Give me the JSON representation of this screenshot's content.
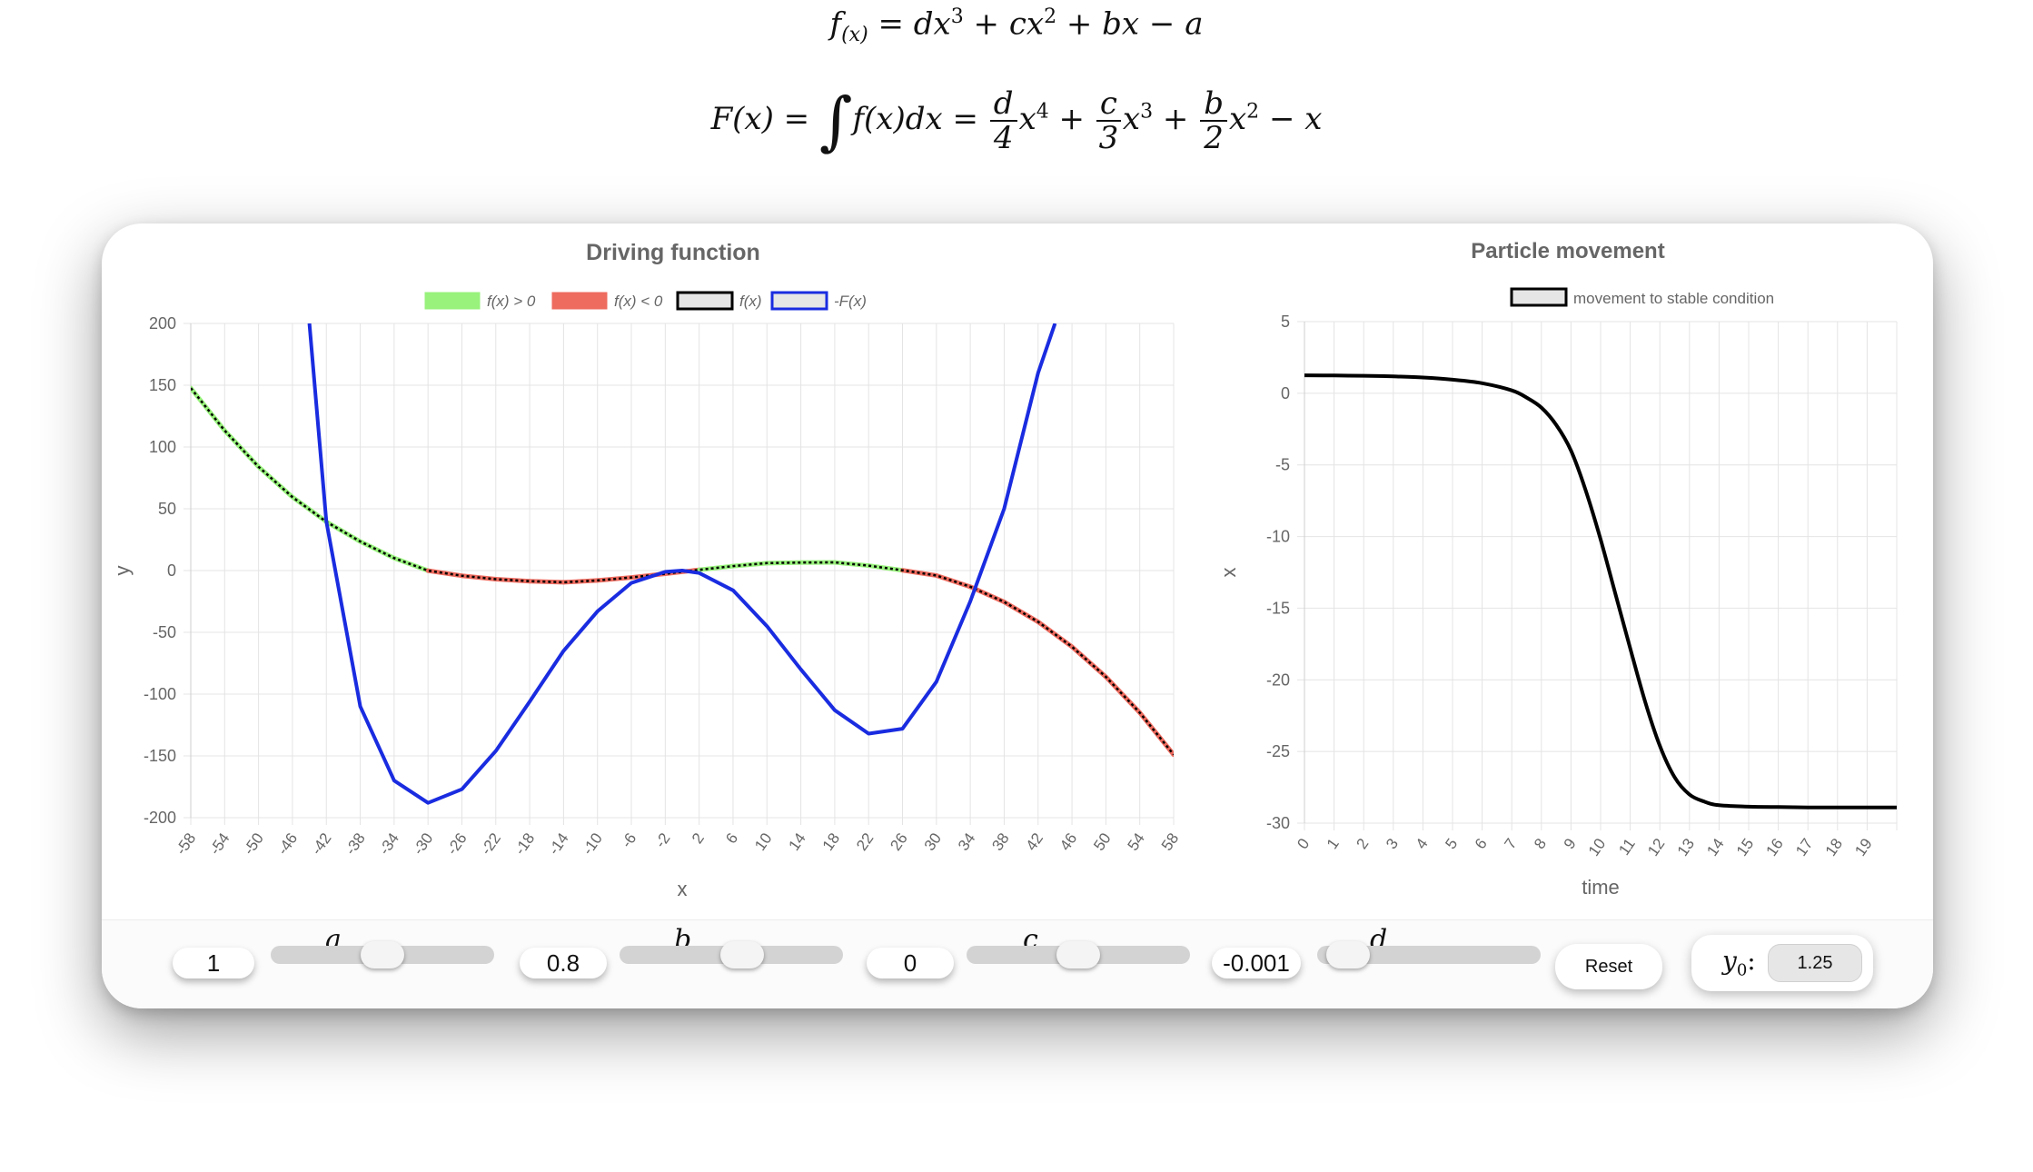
{
  "formulas": {
    "f_lhs": "f",
    "f_sub": "(x)",
    "f_rhs_parts": [
      "= dx",
      "3",
      " + cx",
      "2",
      " + bx − a"
    ],
    "F_lhs": "F(x) = ",
    "F_integral": "∫",
    "F_mid": "f(x)dx = ",
    "F_terms": [
      {
        "num": "d",
        "den": "4",
        "var": "x",
        "pow": "4",
        "op": " + "
      },
      {
        "num": "c",
        "den": "3",
        "var": "x",
        "pow": "3",
        "op": " + "
      },
      {
        "num": "b",
        "den": "2",
        "var": "x",
        "pow": "2",
        "op": " − x"
      }
    ]
  },
  "chart_data": [
    {
      "type": "line",
      "title": "Driving function",
      "xlabel": "x",
      "ylabel": "y",
      "xlim": [
        -58,
        58
      ],
      "ylim": [
        -200,
        200
      ],
      "x_ticks": [
        "-58",
        "-54",
        "-50",
        "-46",
        "-42",
        "-38",
        "-34",
        "-30",
        "-26",
        "-22",
        "-18",
        "-14",
        "-10",
        "-6",
        "-2",
        "2",
        "6",
        "10",
        "14",
        "18",
        "22",
        "26",
        "30",
        "34",
        "38",
        "42",
        "46",
        "50",
        "54",
        "58"
      ],
      "y_ticks": [
        "200",
        "150",
        "100",
        "50",
        "0",
        "-50",
        "-100",
        "-150",
        "-200"
      ],
      "legend": [
        "f(x) > 0",
        "f(x) < 0",
        "f(x)",
        "-F(x)"
      ],
      "legend_colors": [
        "#98f27c",
        "#ee6b5f",
        "#000000",
        "#1a2ce0"
      ],
      "legend_placement": "top",
      "parameters": {
        "a": 1,
        "b": 0.8,
        "c": 0,
        "d": -0.001
      },
      "series": [
        {
          "name": "f(x)",
          "x": [
            -58,
            -54,
            -50,
            -46,
            -42,
            -38,
            -34,
            -30,
            -26,
            -22,
            -18,
            -14,
            -10,
            -6,
            -2,
            2,
            6,
            10,
            14,
            18,
            22,
            26,
            30,
            34,
            38,
            42,
            46,
            50,
            54,
            58
          ],
          "y": [
            147.7,
            113.3,
            84.0,
            59.5,
            39.5,
            23.5,
            10.1,
            -0.1,
            -4.2,
            -7.0,
            -8.6,
            -9.5,
            -8.0,
            -5.6,
            -2.6,
            0.6,
            3.6,
            6.0,
            6.5,
            6.6,
            4.0,
            0.2,
            -4.0,
            -13.1,
            -25.4,
            -41.5,
            -61.7,
            -86.0,
            -115.0,
            -149.0
          ]
        },
        {
          "name": "-F(x)",
          "x": [
            -44,
            -42,
            -38,
            -34,
            -30,
            -26,
            -22,
            -18,
            -14,
            -10,
            -6,
            -2,
            0,
            2,
            6,
            10,
            14,
            18,
            22,
            26,
            30,
            34,
            38,
            42,
            44
          ],
          "y": [
            200,
            40,
            -110,
            -170,
            -188,
            -177,
            -146,
            -106,
            -65,
            -33,
            -10,
            -1,
            0,
            -2,
            -16,
            -45,
            -80,
            -113,
            -132,
            -128,
            -90,
            -25,
            50,
            160,
            200
          ]
        }
      ]
    },
    {
      "type": "line",
      "title": "Particle movement",
      "xlabel": "time",
      "ylabel": "x",
      "ylim": [
        -30,
        5
      ],
      "x_ticks": [
        "0",
        "1",
        "2",
        "3",
        "4",
        "5",
        "6",
        "7",
        "8",
        "9",
        "10",
        "11",
        "12",
        "13",
        "14",
        "15",
        "16",
        "17",
        "18",
        "19"
      ],
      "y_ticks": [
        "5",
        "0",
        "-5",
        "-10",
        "-15",
        "-20",
        "-25",
        "-30"
      ],
      "legend": [
        "movement to stable condition"
      ],
      "legend_colors": [
        "#000000"
      ],
      "legend_placement": "top",
      "series": [
        {
          "name": "movement to stable condition",
          "x": [
            0,
            1,
            2,
            3,
            4,
            5,
            6,
            7,
            7.5,
            8,
            8.5,
            9,
            9.5,
            10,
            10.5,
            11,
            11.5,
            12,
            12.5,
            13,
            13.5,
            14,
            15,
            16,
            17,
            18,
            19,
            20
          ],
          "y": [
            1.25,
            1.24,
            1.22,
            1.18,
            1.1,
            0.95,
            0.7,
            0.2,
            -0.3,
            -1.0,
            -2.2,
            -4.0,
            -6.8,
            -10.2,
            -14.0,
            -17.8,
            -21.5,
            -24.6,
            -26.8,
            -28.0,
            -28.5,
            -28.75,
            -28.85,
            -28.88,
            -28.9,
            -28.9,
            -28.9,
            -28.9
          ]
        }
      ]
    }
  ],
  "controls": {
    "params": [
      {
        "name": "a",
        "value": "1",
        "fraction": 0.5
      },
      {
        "name": "b",
        "value": "0.8",
        "fraction": 0.56
      },
      {
        "name": "c",
        "value": "0",
        "fraction": 0.5
      },
      {
        "name": "d",
        "value": "-0.001",
        "fraction": 0.05
      }
    ],
    "reset_label": "Reset",
    "y0_label": "y",
    "y0_sub": "0",
    "y0_colon": ":",
    "y0_value": "1.25"
  }
}
